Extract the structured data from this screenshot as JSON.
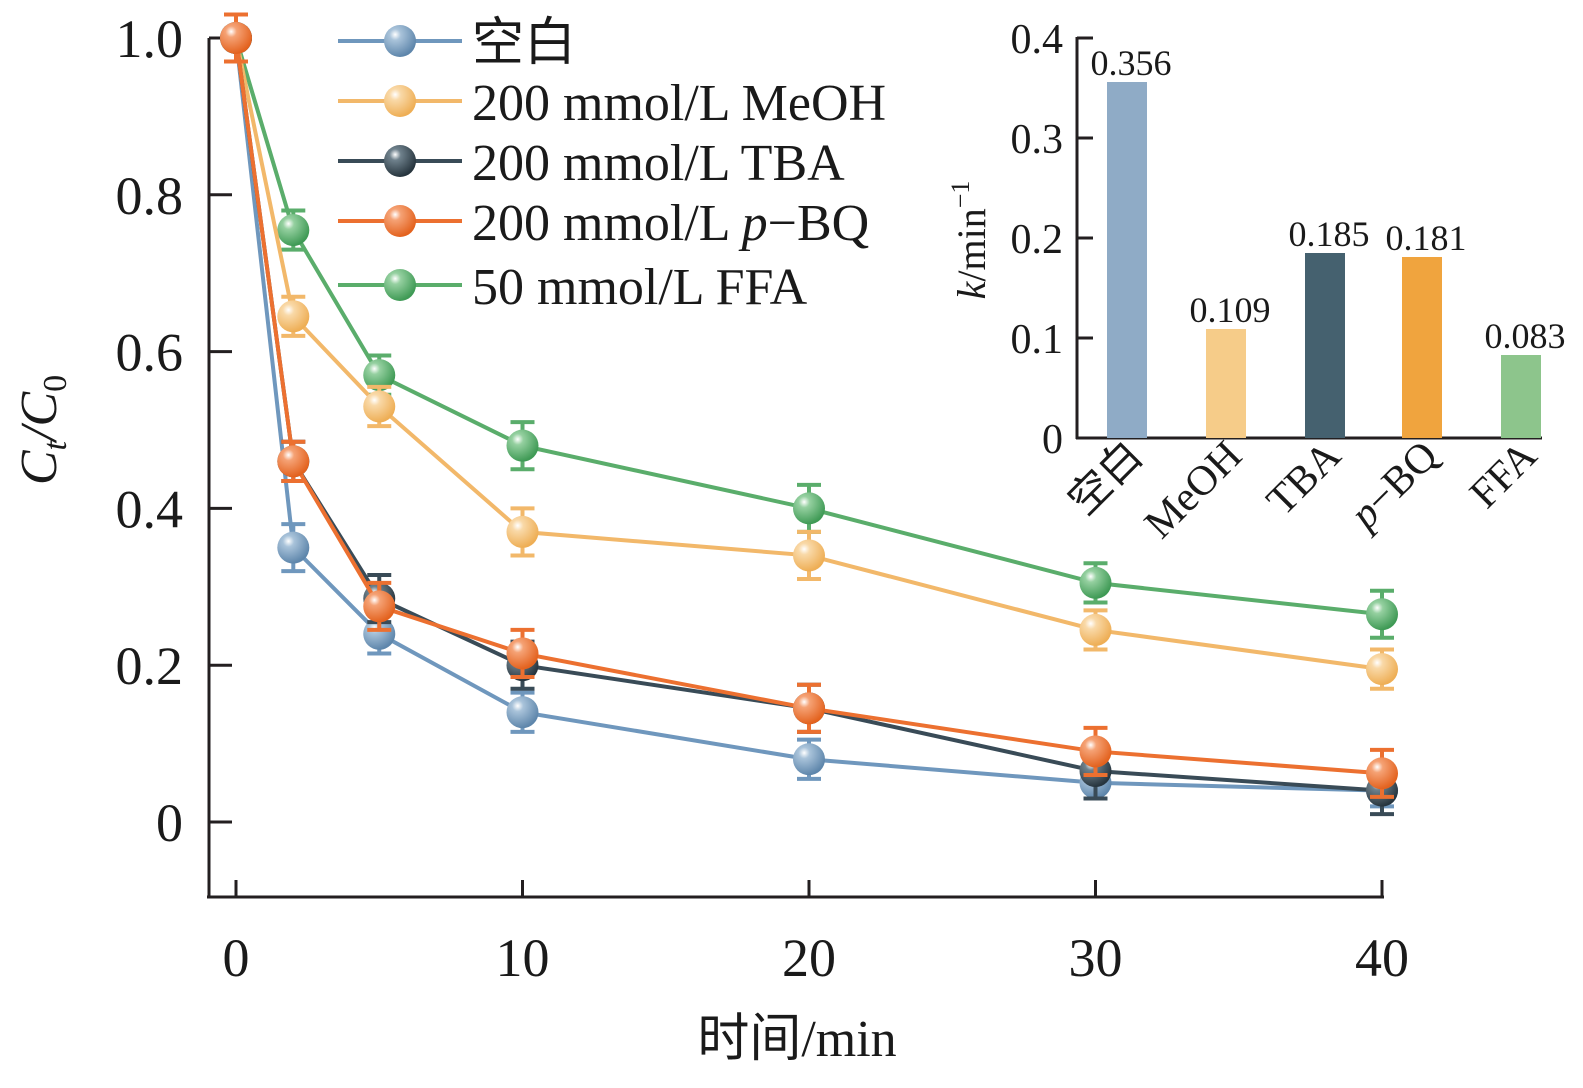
{
  "chart_data": [
    {
      "type": "line",
      "title": "",
      "xlabel": "时间/min",
      "ylabel_main": "C",
      "ylabel_sub1": "t",
      "ylabel_mid": "/C",
      "ylabel_sub2": "0",
      "ylabel": "Ct/C0",
      "xlim": [
        -1,
        40
      ],
      "ylim": [
        -0.1,
        1.0
      ],
      "xticks": [
        0,
        10,
        20,
        30,
        40
      ],
      "xtick_labels": [
        "0",
        "10",
        "20",
        "30",
        "40"
      ],
      "yticks": [
        0,
        0.2,
        0.4,
        0.6,
        0.8,
        1.0
      ],
      "ytick_labels": [
        "0",
        "0.2",
        "0.4",
        "0.6",
        "0.8",
        "1.0"
      ],
      "grid": false,
      "legend_position": "top-center",
      "x": [
        0,
        2,
        5,
        10,
        20,
        30,
        40
      ],
      "series": [
        {
          "name": "空白",
          "color": "#6f97bd",
          "values": [
            1.0,
            0.35,
            0.24,
            0.14,
            0.08,
            0.05,
            0.04
          ],
          "errors": [
            0.03,
            0.03,
            0.025,
            0.025,
            0.025,
            0.02,
            0.02
          ]
        },
        {
          "name": "200 mmol/L MeOH",
          "color": "#f2b86a",
          "values": [
            1.0,
            0.645,
            0.53,
            0.37,
            0.34,
            0.245,
            0.195
          ],
          "errors": [
            0.03,
            0.025,
            0.025,
            0.03,
            0.03,
            0.025,
            0.025
          ]
        },
        {
          "name": "200 mmol/L TBA",
          "color": "#394b57",
          "values": [
            1.0,
            0.46,
            0.285,
            0.2,
            0.145,
            0.065,
            0.04
          ],
          "errors": [
            0.03,
            0.025,
            0.03,
            0.03,
            0.03,
            0.035,
            0.03
          ]
        },
        {
          "name": "200 mmol/L ",
          "name_italic": "p",
          "name_suffix": "−BQ",
          "color": "#ec7030",
          "values": [
            1.0,
            0.46,
            0.275,
            0.215,
            0.145,
            0.09,
            0.062
          ],
          "errors": [
            0.03,
            0.025,
            0.03,
            0.03,
            0.03,
            0.03,
            0.03
          ]
        },
        {
          "name": "50 mmol/L FFA",
          "color": "#5aad6b",
          "values": [
            1.0,
            0.755,
            0.57,
            0.48,
            0.4,
            0.305,
            0.265
          ],
          "errors": [
            0.03,
            0.025,
            0.025,
            0.03,
            0.03,
            0.025,
            0.03
          ]
        }
      ]
    },
    {
      "type": "bar",
      "title": "",
      "xlabel": "",
      "ylabel": "k/min−1",
      "ylabel_k": "k",
      "ylabel_rest": "/min",
      "ylabel_sup": "−1",
      "ylim": [
        0,
        0.4
      ],
      "yticks": [
        0,
        0.1,
        0.2,
        0.3,
        0.4
      ],
      "ytick_labels": [
        "0",
        "0.1",
        "0.2",
        "0.3",
        "0.4"
      ],
      "grid": false,
      "categories": [
        "空白",
        "MeOH",
        "TBA",
        "p−BQ",
        "FFA"
      ],
      "category_italic_prefix": [
        "",
        "",
        "",
        "p",
        ""
      ],
      "category_rest": [
        "空白",
        "MeOH",
        "TBA",
        "−BQ",
        "FFA"
      ],
      "values": [
        0.356,
        0.109,
        0.185,
        0.181,
        0.083
      ],
      "value_labels": [
        "0.356",
        "0.109",
        "0.185",
        "0.181",
        "0.083"
      ],
      "colors": [
        "#8fabc6",
        "#f6cc89",
        "#45616f",
        "#f0a43e",
        "#8dc58c"
      ]
    }
  ]
}
